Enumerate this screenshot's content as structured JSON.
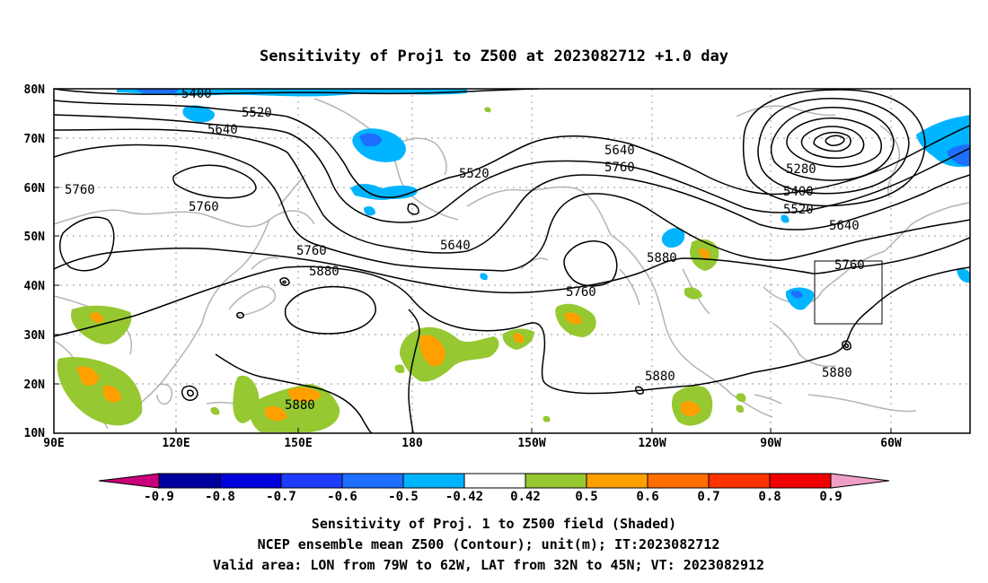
{
  "title": "Sensitivity of Proj1 to Z500 at 2023082712 +1.0 day",
  "lat_ticks": [
    "80N",
    "70N",
    "60N",
    "50N",
    "40N",
    "30N",
    "20N",
    "10N"
  ],
  "lon_ticks": [
    "90E",
    "120E",
    "150E",
    "180",
    "150W",
    "120W",
    "90W",
    "60W"
  ],
  "colorbar": {
    "labels": [
      "-0.9",
      "-0.8",
      "-0.7",
      "-0.6",
      "-0.5",
      "-0.42",
      "0.42",
      "0.5",
      "0.6",
      "0.7",
      "0.8",
      "0.9"
    ],
    "colors": {
      "under": "#c8007a",
      "bins": [
        "#0000a0",
        "#0000dc",
        "#1e3cff",
        "#1e6eff",
        "#00b4ff",
        "#ffffff",
        "#96c832",
        "#ffa000",
        "#ff6e00",
        "#ff3200",
        "#f00000"
      ],
      "over": "#f0a0c8"
    }
  },
  "contour_labels": [
    "5400",
    "5520",
    "5640",
    "5760",
    "5760",
    "5520",
    "5640",
    "5760",
    "5640",
    "5760",
    "5880",
    "5760",
    "5880",
    "5880",
    "5880",
    "5280",
    "5400",
    "5520",
    "5640",
    "5760",
    "5880"
  ],
  "caption": {
    "line1": "Sensitivity of Proj. 1 to Z500 field (Shaded)",
    "line2": "NCEP ensemble mean Z500 (Contour); unit(m); IT:2023082712",
    "line3": "Valid area: LON from 79W to 62W, LAT from 32N to 45N; VT: 2023082912"
  },
  "colors": {
    "contour": "#000000",
    "coast": "#b4b4b4",
    "grid": "#9a9a9a",
    "green": "#96c832",
    "orange": "#ffa000",
    "cyan": "#00b4ff",
    "blue": "#1e6eff"
  }
}
